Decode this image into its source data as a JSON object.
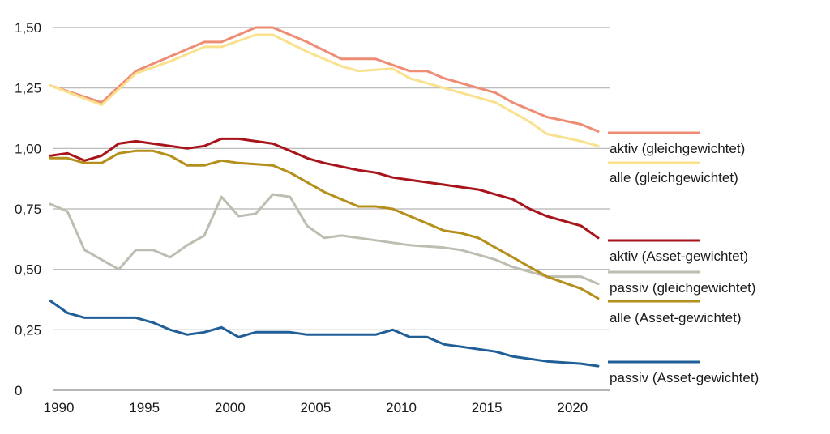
{
  "chart_data": {
    "type": "line",
    "title": "",
    "xlabel": "",
    "ylabel": "",
    "xlim": [
      1989.5,
      2021.5
    ],
    "ylim": [
      0,
      1.5
    ],
    "grid": true,
    "legend_placement": "right",
    "y_ticks": [
      {
        "value": 0,
        "label": "0"
      },
      {
        "value": 0.25,
        "label": "0,25"
      },
      {
        "value": 0.5,
        "label": "0,50"
      },
      {
        "value": 0.75,
        "label": "0,75"
      },
      {
        "value": 1.0,
        "label": "1,00"
      },
      {
        "value": 1.25,
        "label": "1,25"
      },
      {
        "value": 1.5,
        "label": "1,50"
      }
    ],
    "x_ticks": [
      {
        "value": 1990,
        "label": "1990"
      },
      {
        "value": 1995,
        "label": "1995"
      },
      {
        "value": 2000,
        "label": "2000"
      },
      {
        "value": 2005,
        "label": "2005"
      },
      {
        "value": 2010,
        "label": "2010"
      },
      {
        "value": 2015,
        "label": "2015"
      },
      {
        "value": 2020,
        "label": "2020"
      }
    ],
    "series": [
      {
        "name": "aktiv (gleichgewichtet)",
        "color": "#ef8c74",
        "points": [
          [
            1989.5,
            1.26
          ],
          [
            1992.5,
            1.19
          ],
          [
            1994.5,
            1.32
          ],
          [
            1996.5,
            1.38
          ],
          [
            1998.5,
            1.44
          ],
          [
            1999.5,
            1.44
          ],
          [
            2001.5,
            1.5
          ],
          [
            2002.5,
            1.5
          ],
          [
            2004.5,
            1.44
          ],
          [
            2006.5,
            1.37
          ],
          [
            2008.5,
            1.37
          ],
          [
            2010.5,
            1.32
          ],
          [
            2011.5,
            1.32
          ],
          [
            2012.5,
            1.29
          ],
          [
            2014.5,
            1.25
          ],
          [
            2015.5,
            1.23
          ],
          [
            2016.5,
            1.19
          ],
          [
            2017.5,
            1.16
          ],
          [
            2018.5,
            1.13
          ],
          [
            2020.5,
            1.1
          ],
          [
            2021.5,
            1.07
          ]
        ]
      },
      {
        "name": "alle (gleichgewichtet)",
        "color": "#f9e18e",
        "points": [
          [
            1989.5,
            1.26
          ],
          [
            1992.5,
            1.18
          ],
          [
            1994.5,
            1.31
          ],
          [
            1996.5,
            1.36
          ],
          [
            1998.5,
            1.42
          ],
          [
            1999.5,
            1.42
          ],
          [
            2001.5,
            1.47
          ],
          [
            2002.5,
            1.47
          ],
          [
            2004.5,
            1.4
          ],
          [
            2006.5,
            1.34
          ],
          [
            2007.5,
            1.32
          ],
          [
            2009.5,
            1.33
          ],
          [
            2010.5,
            1.29
          ],
          [
            2012.5,
            1.25
          ],
          [
            2014.5,
            1.21
          ],
          [
            2015.5,
            1.19
          ],
          [
            2016.5,
            1.15
          ],
          [
            2017.5,
            1.11
          ],
          [
            2018.5,
            1.06
          ],
          [
            2020.5,
            1.03
          ],
          [
            2021.5,
            1.01
          ]
        ]
      },
      {
        "name": "aktiv (Asset-gewichtet)",
        "color": "#a8141b",
        "points": [
          [
            1989.5,
            0.97
          ],
          [
            1990.5,
            0.98
          ],
          [
            1991.5,
            0.95
          ],
          [
            1992.5,
            0.97
          ],
          [
            1993.5,
            1.02
          ],
          [
            1994.5,
            1.03
          ],
          [
            1995.5,
            1.02
          ],
          [
            1996.5,
            1.01
          ],
          [
            1997.5,
            1.0
          ],
          [
            1998.5,
            1.01
          ],
          [
            1999.5,
            1.04
          ],
          [
            2000.5,
            1.04
          ],
          [
            2002.5,
            1.02
          ],
          [
            2003.5,
            0.99
          ],
          [
            2004.5,
            0.96
          ],
          [
            2005.5,
            0.94
          ],
          [
            2007.5,
            0.91
          ],
          [
            2008.5,
            0.9
          ],
          [
            2009.5,
            0.88
          ],
          [
            2011.5,
            0.86
          ],
          [
            2012.5,
            0.85
          ],
          [
            2013.5,
            0.84
          ],
          [
            2014.5,
            0.83
          ],
          [
            2016.5,
            0.79
          ],
          [
            2017.5,
            0.75
          ],
          [
            2018.5,
            0.72
          ],
          [
            2020.5,
            0.68
          ],
          [
            2021.5,
            0.63
          ]
        ]
      },
      {
        "name": "passiv (gleichgewichtet)",
        "color": "#bebdb2",
        "points": [
          [
            1989.5,
            0.77
          ],
          [
            1990.5,
            0.74
          ],
          [
            1991.5,
            0.58
          ],
          [
            1992.5,
            0.54
          ],
          [
            1993.5,
            0.5
          ],
          [
            1994.5,
            0.58
          ],
          [
            1995.5,
            0.58
          ],
          [
            1996.5,
            0.55
          ],
          [
            1997.5,
            0.6
          ],
          [
            1998.5,
            0.64
          ],
          [
            1999.5,
            0.8
          ],
          [
            2000.5,
            0.72
          ],
          [
            2001.5,
            0.73
          ],
          [
            2002.5,
            0.81
          ],
          [
            2003.5,
            0.8
          ],
          [
            2004.5,
            0.68
          ],
          [
            2005.5,
            0.63
          ],
          [
            2006.5,
            0.64
          ],
          [
            2007.5,
            0.63
          ],
          [
            2008.5,
            0.62
          ],
          [
            2009.5,
            0.61
          ],
          [
            2010.5,
            0.6
          ],
          [
            2012.5,
            0.59
          ],
          [
            2013.5,
            0.58
          ],
          [
            2014.5,
            0.56
          ],
          [
            2015.5,
            0.54
          ],
          [
            2016.5,
            0.51
          ],
          [
            2017.5,
            0.49
          ],
          [
            2018.5,
            0.47
          ],
          [
            2020.5,
            0.47
          ],
          [
            2021.5,
            0.44
          ]
        ]
      },
      {
        "name": "alle (Asset-gewichtet)",
        "color": "#b58f1c",
        "points": [
          [
            1989.5,
            0.96
          ],
          [
            1990.5,
            0.96
          ],
          [
            1991.5,
            0.94
          ],
          [
            1992.5,
            0.94
          ],
          [
            1993.5,
            0.98
          ],
          [
            1994.5,
            0.99
          ],
          [
            1995.5,
            0.99
          ],
          [
            1996.5,
            0.97
          ],
          [
            1997.5,
            0.93
          ],
          [
            1998.5,
            0.93
          ],
          [
            1999.5,
            0.95
          ],
          [
            2000.5,
            0.94
          ],
          [
            2002.5,
            0.93
          ],
          [
            2003.5,
            0.9
          ],
          [
            2004.5,
            0.86
          ],
          [
            2005.5,
            0.82
          ],
          [
            2006.5,
            0.79
          ],
          [
            2007.5,
            0.76
          ],
          [
            2008.5,
            0.76
          ],
          [
            2009.5,
            0.75
          ],
          [
            2010.5,
            0.72
          ],
          [
            2011.5,
            0.69
          ],
          [
            2012.5,
            0.66
          ],
          [
            2013.5,
            0.65
          ],
          [
            2014.5,
            0.63
          ],
          [
            2015.5,
            0.59
          ],
          [
            2016.5,
            0.55
          ],
          [
            2017.5,
            0.51
          ],
          [
            2018.5,
            0.47
          ],
          [
            2020.5,
            0.42
          ],
          [
            2021.5,
            0.38
          ]
        ]
      },
      {
        "name": "passiv (Asset-gewichtet)",
        "color": "#1f5e97",
        "points": [
          [
            1989.5,
            0.37
          ],
          [
            1990.5,
            0.32
          ],
          [
            1991.5,
            0.3
          ],
          [
            1992.5,
            0.3
          ],
          [
            1993.5,
            0.3
          ],
          [
            1994.5,
            0.3
          ],
          [
            1995.5,
            0.28
          ],
          [
            1996.5,
            0.25
          ],
          [
            1997.5,
            0.23
          ],
          [
            1998.5,
            0.24
          ],
          [
            1999.5,
            0.26
          ],
          [
            2000.5,
            0.22
          ],
          [
            2001.5,
            0.24
          ],
          [
            2003.5,
            0.24
          ],
          [
            2004.5,
            0.23
          ],
          [
            2005.5,
            0.23
          ],
          [
            2007.5,
            0.23
          ],
          [
            2008.5,
            0.23
          ],
          [
            2009.5,
            0.25
          ],
          [
            2010.5,
            0.22
          ],
          [
            2011.5,
            0.22
          ],
          [
            2012.5,
            0.19
          ],
          [
            2013.5,
            0.18
          ],
          [
            2014.5,
            0.17
          ],
          [
            2015.5,
            0.16
          ],
          [
            2016.5,
            0.14
          ],
          [
            2017.5,
            0.13
          ],
          [
            2018.5,
            0.12
          ],
          [
            2020.5,
            0.11
          ],
          [
            2021.5,
            0.1
          ]
        ]
      }
    ],
    "legend": [
      {
        "label": "aktiv (gleichgewichtet)",
        "color": "#ef8c74"
      },
      {
        "label": "alle (gleichgewichtet)",
        "color": "#f9e18e"
      },
      {
        "label": "aktiv (Asset-gewichtet)",
        "color": "#a8141b"
      },
      {
        "label": "passiv (gleichgewichtet)",
        "color": "#bebdb2"
      },
      {
        "label": "alle (Asset-gewichtet)",
        "color": "#b58f1c"
      },
      {
        "label": "passiv (Asset-gewichtet)",
        "color": "#1f5e97"
      }
    ]
  }
}
